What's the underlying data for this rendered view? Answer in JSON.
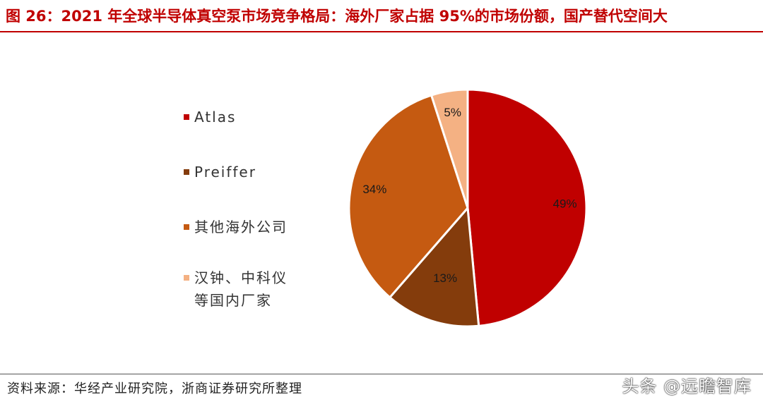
{
  "title": "图 26：2021 年全球半导体真空泵市场竞争格局：海外厂家占据 95%的市场份额，国产替代空间大",
  "source": "资料来源：华经产业研究院，浙商证券研究所整理",
  "watermark": "头条 @远瞻智库",
  "chart_data": {
    "type": "pie",
    "title": "",
    "legend_position": "left",
    "slices": [
      {
        "name": "Atlas",
        "value": 49,
        "label": "49%",
        "color": "#c00000"
      },
      {
        "name": "Preiffer",
        "value": 13,
        "label": "13%",
        "color": "#843c0c"
      },
      {
        "name": "其他海外公司",
        "value": 34,
        "label": "34%",
        "color": "#c55a11"
      },
      {
        "name": "汉钟、中科仪等国内厂家",
        "value": 5,
        "label": "5%",
        "color": "#f4b183"
      }
    ]
  }
}
